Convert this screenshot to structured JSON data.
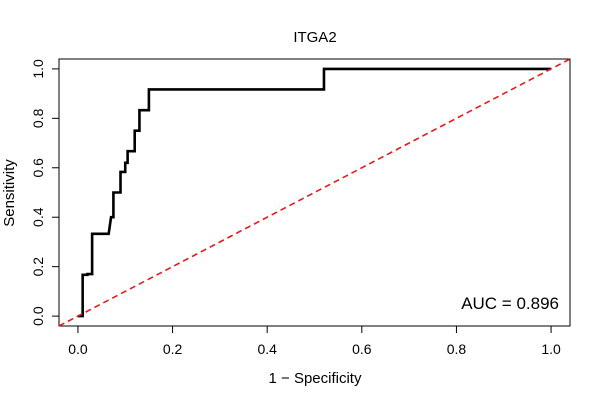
{
  "chart_data": {
    "type": "line",
    "title": "ITGA2",
    "xlabel": "1 − Specificity",
    "ylabel": "Sensitivity",
    "xlim": [
      -0.04,
      1.04
    ],
    "ylim": [
      -0.04,
      1.04
    ],
    "x_ticks": [
      0.0,
      0.2,
      0.4,
      0.6,
      0.8,
      1.0
    ],
    "x_tick_labels": [
      "0.0",
      "0.2",
      "0.4",
      "0.6",
      "0.8",
      "1.0"
    ],
    "y_ticks": [
      0.0,
      0.2,
      0.4,
      0.6,
      0.8,
      1.0
    ],
    "y_tick_labels": [
      "0.0",
      "0.2",
      "0.4",
      "0.6",
      "0.8",
      "1.0"
    ],
    "annotation": "AUC = 0.896",
    "series": [
      {
        "line_color": "#000000",
        "style": "solid",
        "x": [
          0.0,
          0.01,
          0.01,
          0.02,
          0.02,
          0.03,
          0.03,
          0.04,
          0.05,
          0.065,
          0.07,
          0.075,
          0.075,
          0.09,
          0.09,
          0.1,
          0.1,
          0.105,
          0.105,
          0.12,
          0.12,
          0.125,
          0.13,
          0.13,
          0.135,
          0.15,
          0.15,
          0.3,
          0.52,
          0.52,
          0.53,
          0.7,
          1.0
        ],
        "y": [
          0.0,
          0.0,
          0.167,
          0.167,
          0.17,
          0.17,
          0.333,
          0.333,
          0.333,
          0.333,
          0.4,
          0.4,
          0.5,
          0.5,
          0.583,
          0.583,
          0.62,
          0.62,
          0.667,
          0.667,
          0.75,
          0.75,
          0.75,
          0.833,
          0.833,
          0.833,
          0.917,
          0.917,
          0.917,
          1.0,
          1.0,
          1.0,
          1.0
        ]
      },
      {
        "line_color": "#e31a1c",
        "style": "dashed",
        "x": [
          -0.04,
          1.04
        ],
        "y": [
          -0.04,
          1.04
        ]
      }
    ],
    "grid": false,
    "legend": "none"
  }
}
